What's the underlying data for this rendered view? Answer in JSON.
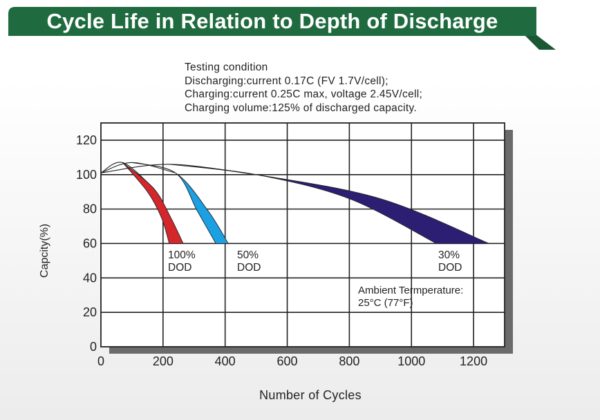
{
  "title": "Cycle Life in Relation to Depth of Discharge",
  "testing_condition": {
    "heading": "Testing condition",
    "lines": [
      "Discharging:current 0.17C (FV 1.7V/cell);",
      "Charging:current 0.25C max, voltage 2.45V/cell;",
      "Charging volume:125% of discharged capacity."
    ]
  },
  "colors": {
    "banner": "#1f6b3f",
    "banner_shadow": "#1a5733",
    "dod_100": "#d3272b",
    "dod_50": "#1aa0e3",
    "dod_30": "#2c1f73",
    "plot_shadow": "#6b6b6b",
    "grid": "#222222"
  },
  "chart_data": {
    "type": "area",
    "xlabel": "Number of Cycles",
    "ylabel": "Capcity(%)",
    "xlim": [
      0,
      1300
    ],
    "ylim": [
      0,
      130
    ],
    "xticks": [
      0,
      200,
      400,
      600,
      800,
      1000,
      1200
    ],
    "yticks": [
      0,
      20,
      40,
      60,
      80,
      100,
      120
    ],
    "grid": true,
    "series": [
      {
        "name": "100% DOD",
        "label_lines": [
          "100%",
          "DOD"
        ],
        "color": "#d3272b",
        "upper": [
          [
            0,
            101
          ],
          [
            70,
            107
          ],
          [
            170,
            92
          ],
          [
            225,
            75
          ],
          [
            265,
            60
          ]
        ],
        "lower": [
          [
            0,
            101
          ],
          [
            70,
            107
          ],
          [
            150,
            90
          ],
          [
            195,
            75
          ],
          [
            220,
            60
          ]
        ]
      },
      {
        "name": "50% DOD",
        "label_lines": [
          "50%",
          "DOD"
        ],
        "color": "#1aa0e3",
        "upper": [
          [
            0,
            101
          ],
          [
            100,
            107
          ],
          [
            240,
            101
          ],
          [
            345,
            79
          ],
          [
            410,
            60
          ]
        ],
        "lower": [
          [
            0,
            101
          ],
          [
            100,
            107
          ],
          [
            240,
            101
          ],
          [
            310,
            79
          ],
          [
            370,
            60
          ]
        ]
      },
      {
        "name": "30% DOD",
        "label_lines": [
          "30%",
          "DOD"
        ],
        "color": "#2c1f73",
        "upper": [
          [
            0,
            101
          ],
          [
            220,
            106
          ],
          [
            500,
            100
          ],
          [
            900,
            86
          ],
          [
            1250,
            60
          ]
        ],
        "lower": [
          [
            0,
            101
          ],
          [
            220,
            106
          ],
          [
            500,
            100
          ],
          [
            800,
            86
          ],
          [
            1080,
            60
          ]
        ]
      }
    ],
    "annotations": [
      {
        "lines": [
          "Ambient Termperature:",
          "25°C (77°F)"
        ],
        "x": 820,
        "y": 38
      }
    ]
  }
}
